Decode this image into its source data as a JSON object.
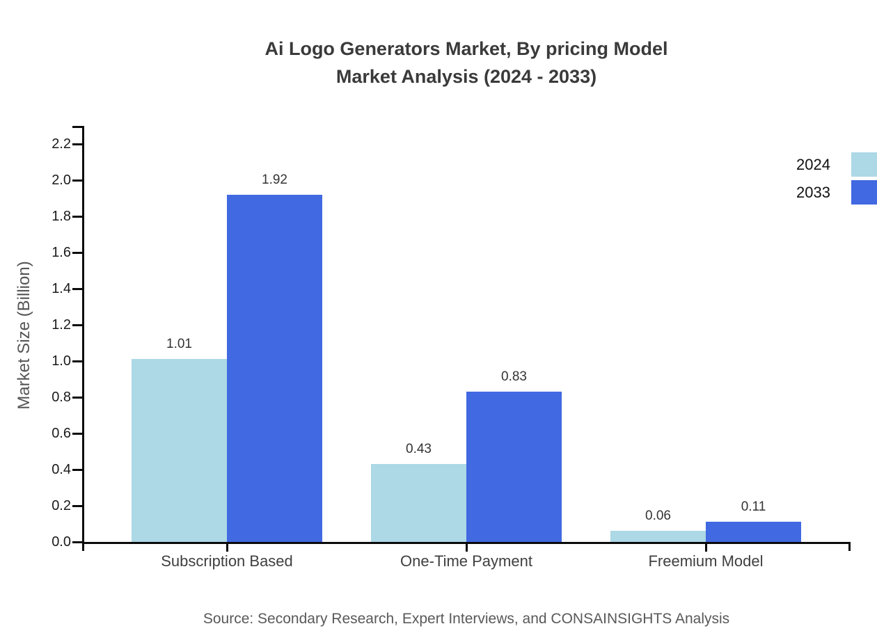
{
  "chart_data": {
    "type": "bar",
    "title_lines": [
      "Ai Logo Generators Market, By pricing Model",
      "Market Analysis (2024 - 2033)"
    ],
    "ylabel": "Market Size (Billion)",
    "xlabel": "",
    "categories": [
      "Subscription Based",
      "One-Time Payment",
      "Freemium Model"
    ],
    "series": [
      {
        "name": "2024",
        "color": "#ADD8E6",
        "values": [
          1.01,
          0.43,
          0.06
        ]
      },
      {
        "name": "2033",
        "color": "#4169E1",
        "values": [
          1.92,
          0.83,
          0.11
        ]
      }
    ],
    "value_labels": [
      [
        "1.01",
        "0.43",
        "0.06"
      ],
      [
        "1.92",
        "0.83",
        "0.11"
      ]
    ],
    "ylim": [
      0,
      2.2
    ],
    "yticks": [
      "0.0",
      "0.2",
      "0.4",
      "0.6",
      "0.8",
      "1.0",
      "1.2",
      "1.4",
      "1.6",
      "1.8",
      "2.0",
      "2.2"
    ],
    "grid": false,
    "legend_position": "top-right",
    "source": "Source: Secondary Research, Expert Interviews, and CONSAINSIGHTS Analysis"
  },
  "colors": {
    "bar_2024": "#ADD8E6",
    "bar_2033": "#4169E1",
    "axis": "#0b0b0b",
    "title_text": "#3a3a3a",
    "tick_label_text": "#1a1a1a",
    "category_label_text": "#3f3f3f",
    "value_label_text": "#333333",
    "muted_text": "#555555",
    "background": "#ffffff"
  }
}
